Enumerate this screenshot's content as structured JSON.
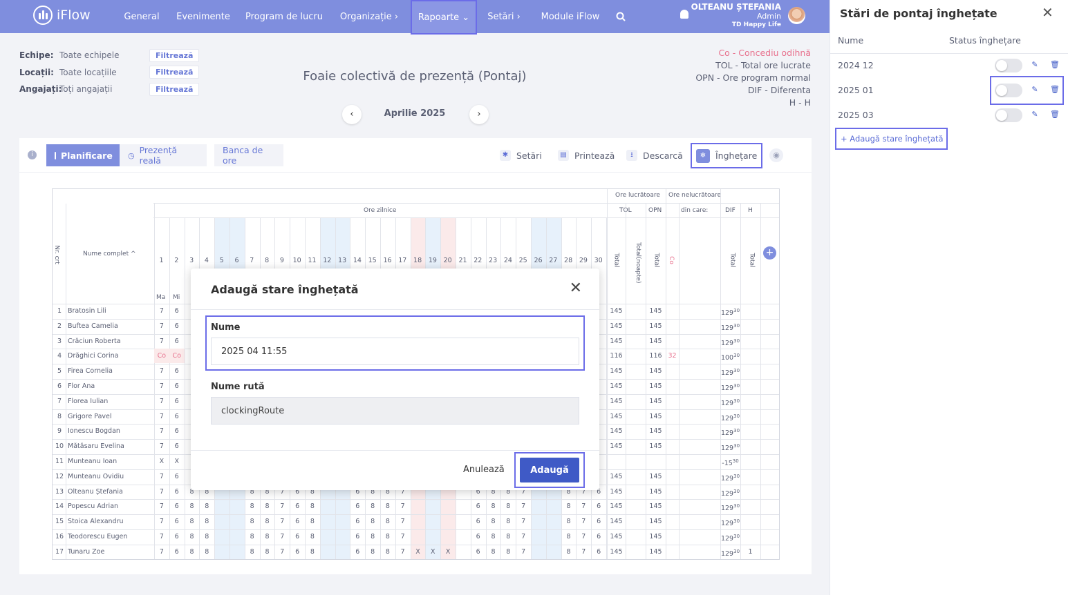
{
  "app": {
    "logo": "iFlow"
  },
  "nav": {
    "items": [
      {
        "label": "General"
      },
      {
        "label": "Evenimente"
      },
      {
        "label": "Program de lucru"
      },
      {
        "label": "Organizație ›"
      },
      {
        "label": "Rapoarte ⌄"
      },
      {
        "label": "Setări ›"
      },
      {
        "label": "Module iFlow"
      }
    ],
    "active": "Rapoarte"
  },
  "user": {
    "name": "OLTEANU ȘTEFANIA",
    "role": "Admin",
    "company": "TD Happy Life"
  },
  "filters": [
    {
      "label": "Echipe:",
      "value": "Toate echipele",
      "button": "Filtrează"
    },
    {
      "label": "Locații:",
      "value": "Toate locațiile",
      "button": "Filtrează"
    },
    {
      "label": "Angajați:",
      "value": "Toți angajații",
      "button": "Filtrează"
    }
  ],
  "page_title": "Foaie colectivă de prezență (Pontaj)",
  "legend": [
    "Co - Concediu odihnă",
    "TOL - Total ore lucrate",
    "OPN - Ore program normal",
    "DIF - Diferenta",
    "H - H"
  ],
  "month": "Aprilie 2025",
  "toolbar": {
    "tabs": [
      "Planificare",
      "Prezență reală",
      "Banca de ore"
    ],
    "actions": [
      "Setări",
      "Printează",
      "Descarcă",
      "Înghețare"
    ]
  },
  "table": {
    "group_headers": {
      "ore_zilnice": "Ore zilnice",
      "ore_lucratoare": "Ore lucrătoare",
      "ore_nelucratoare": "Ore nelucrătoare"
    },
    "sub_headers": {
      "tol": "TOL",
      "opn": "OPN",
      "din_care": "din care:",
      "dif": "DIF",
      "h": "H"
    },
    "col_nr": "Nr. crt",
    "col_name": "Nume complet ^",
    "col_total": "Total",
    "col_total_noapte": "Total(noapte)",
    "col_co": "Co",
    "days": [
      "1",
      "2",
      "3",
      "4",
      "5",
      "6",
      "7",
      "8",
      "9",
      "10",
      "11",
      "12",
      "13",
      "14",
      "15",
      "16",
      "17",
      "18",
      "19",
      "20",
      "21",
      "22",
      "23",
      "24",
      "25",
      "26",
      "27",
      "28",
      "29",
      "30"
    ],
    "weekdays": [
      "Ma",
      "Mi"
    ],
    "rows": [
      {
        "nr": "1",
        "name": "Bratosin Lili",
        "d1": "7",
        "d2": "6",
        "tol": "145",
        "opn": "145",
        "co": "",
        "dif": "129",
        "dif_sup": "30",
        "h": ""
      },
      {
        "nr": "2",
        "name": "Buftea Camelia",
        "d1": "7",
        "d2": "6",
        "tol": "145",
        "opn": "145",
        "co": "",
        "dif": "129",
        "dif_sup": "30",
        "h": ""
      },
      {
        "nr": "3",
        "name": "Crăciun Roberta",
        "d1": "7",
        "d2": "6",
        "tol": "145",
        "opn": "145",
        "co": "",
        "dif": "129",
        "dif_sup": "30",
        "h": ""
      },
      {
        "nr": "4",
        "name": "Drăghici Corina",
        "d1": "Co",
        "d2": "Co",
        "tol": "116",
        "opn": "116",
        "co": "32",
        "dif": "100",
        "dif_sup": "30",
        "h": ""
      },
      {
        "nr": "5",
        "name": "Firea Cornelia",
        "d1": "7",
        "d2": "6",
        "tol": "145",
        "opn": "145",
        "co": "",
        "dif": "129",
        "dif_sup": "30",
        "h": ""
      },
      {
        "nr": "6",
        "name": "Flor Ana",
        "d1": "7",
        "d2": "6",
        "tol": "145",
        "opn": "145",
        "co": "",
        "dif": "129",
        "dif_sup": "30",
        "h": ""
      },
      {
        "nr": "7",
        "name": "Florea Iulian",
        "d1": "7",
        "d2": "6",
        "tol": "145",
        "opn": "145",
        "co": "",
        "dif": "129",
        "dif_sup": "30",
        "h": ""
      },
      {
        "nr": "8",
        "name": "Grigore Pavel",
        "d1": "7",
        "d2": "6",
        "tol": "145",
        "opn": "145",
        "co": "",
        "dif": "129",
        "dif_sup": "30",
        "h": ""
      },
      {
        "nr": "9",
        "name": "Ionescu Bogdan",
        "d1": "7",
        "d2": "6",
        "tol": "145",
        "opn": "145",
        "co": "",
        "dif": "129",
        "dif_sup": "30",
        "h": ""
      },
      {
        "nr": "10",
        "name": "Mătăsaru Evelina",
        "d1": "7",
        "d2": "6",
        "tol": "145",
        "opn": "145",
        "co": "",
        "dif": "129",
        "dif_sup": "30",
        "h": ""
      },
      {
        "nr": "11",
        "name": "Munteanu Ioan",
        "d1": "X",
        "d2": "X",
        "tol": "",
        "opn": "",
        "co": "",
        "dif": "-15",
        "dif_sup": "30",
        "h": ""
      },
      {
        "nr": "12",
        "name": "Munteanu Ovidiu",
        "d1": "7",
        "d2": "6",
        "tol": "145",
        "opn": "145",
        "co": "",
        "dif": "129",
        "dif_sup": "30",
        "h": ""
      },
      {
        "nr": "13",
        "name": "Olteanu Ștefania",
        "d1": "7",
        "d2": "6",
        "tol": "145",
        "opn": "145",
        "co": "",
        "dif": "129",
        "dif_sup": "30",
        "h": ""
      },
      {
        "nr": "14",
        "name": "Popescu Adrian",
        "d1": "7",
        "d2": "6",
        "tol": "145",
        "opn": "145",
        "co": "",
        "dif": "129",
        "dif_sup": "30",
        "h": ""
      },
      {
        "nr": "15",
        "name": "Stoica Alexandru",
        "d1": "7",
        "d2": "6",
        "tol": "145",
        "opn": "145",
        "co": "",
        "dif": "129",
        "dif_sup": "30",
        "h": ""
      },
      {
        "nr": "16",
        "name": "Teodorescu Eugen",
        "d1": "7",
        "d2": "6",
        "tol": "145",
        "opn": "145",
        "co": "",
        "dif": "129",
        "dif_sup": "30",
        "h": ""
      },
      {
        "nr": "17",
        "name": "Tunaru Zoe",
        "d1": "7",
        "d2": "6",
        "tol": "145",
        "opn": "145",
        "co": "",
        "dif": "129",
        "dif_sup": "30",
        "h": "1"
      }
    ],
    "visible_day_values_rows_13_17": {
      "d3": "8",
      "d4": "8",
      "d7": "8",
      "d8": "8",
      "d9": "7",
      "d10": "6",
      "d11": "8",
      "d14": "6",
      "d15": "8",
      "d16": "8",
      "d17": "7",
      "d22": "6",
      "d23": "8",
      "d24": "8",
      "d25": "7",
      "d28": "8",
      "d29": "7",
      "d30": "6"
    },
    "row17_x_days": [
      "X",
      "X",
      "X"
    ]
  },
  "modal": {
    "title": "Adaugă stare înghețată",
    "name_label": "Nume",
    "name_value": "2025 04 11:55",
    "route_label": "Nume rută",
    "route_value": "clockingRoute",
    "cancel": "Anulează",
    "submit": "Adaugă"
  },
  "side_panel": {
    "title": "Stări de pontaj înghețate",
    "col_name": "Nume",
    "col_status": "Status înghețare",
    "items": [
      {
        "name": "2024 12",
        "frozen": false
      },
      {
        "name": "2025 01",
        "frozen": false
      },
      {
        "name": "2025 03",
        "frozen": false
      }
    ],
    "add_label": "+ Adaugă stare înghețată"
  },
  "colors": {
    "accent": "#7f8ede",
    "primary_button": "#3f5ac6",
    "highlight": "#6b6ce8",
    "co": "#e8728e"
  }
}
